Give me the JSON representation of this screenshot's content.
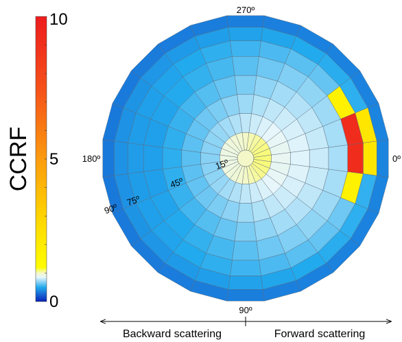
{
  "chart_data": {
    "type": "heatmap",
    "subtype": "polar",
    "colorbar": {
      "label": "CCRF",
      "min": 0,
      "max": 10,
      "ticks": [
        "10",
        "5",
        "0"
      ],
      "stops": [
        {
          "v": 0.0,
          "c": "#0a22b8"
        },
        {
          "v": 0.5,
          "c": "#22aaee"
        },
        {
          "v": 0.85,
          "c": "#e6f6fb"
        },
        {
          "v": 1.0,
          "c": "#f4f8c8"
        },
        {
          "v": 1.2,
          "c": "#fffd00"
        },
        {
          "v": 3.0,
          "c": "#ffd400"
        },
        {
          "v": 5.0,
          "c": "#fb9b0f"
        },
        {
          "v": 7.5,
          "c": "#f5501a"
        },
        {
          "v": 10.0,
          "c": "#ee1c1e"
        }
      ]
    },
    "azimuth_labels": [
      "270º",
      "180º",
      "0º",
      "90º"
    ],
    "ring_labels": [
      "15º",
      "45º",
      "75º",
      "90º"
    ],
    "rings": 8,
    "sectors": 24,
    "ring_base_values": [
      1.0,
      0.78,
      0.72,
      0.66,
      0.6,
      0.55,
      0.47,
      0.34
    ],
    "forward_bias": [
      0.08,
      0.1,
      0.12,
      0.14,
      0.14,
      0.1,
      0.06,
      0.02
    ],
    "hotspots": [
      {
        "ring": 5,
        "sector": 0,
        "value": 9.2
      },
      {
        "ring": 5,
        "sector": 23,
        "value": 9.2
      },
      {
        "ring": 6,
        "sector": 0,
        "value": 2.2
      },
      {
        "ring": 6,
        "sector": 23,
        "value": 2.2
      },
      {
        "ring": 5,
        "sector": 1,
        "value": 1.7
      },
      {
        "ring": 5,
        "sector": 22,
        "value": 1.7
      }
    ],
    "direction_labels": {
      "backward": "Backward scattering",
      "forward": "Forward scattering"
    }
  }
}
